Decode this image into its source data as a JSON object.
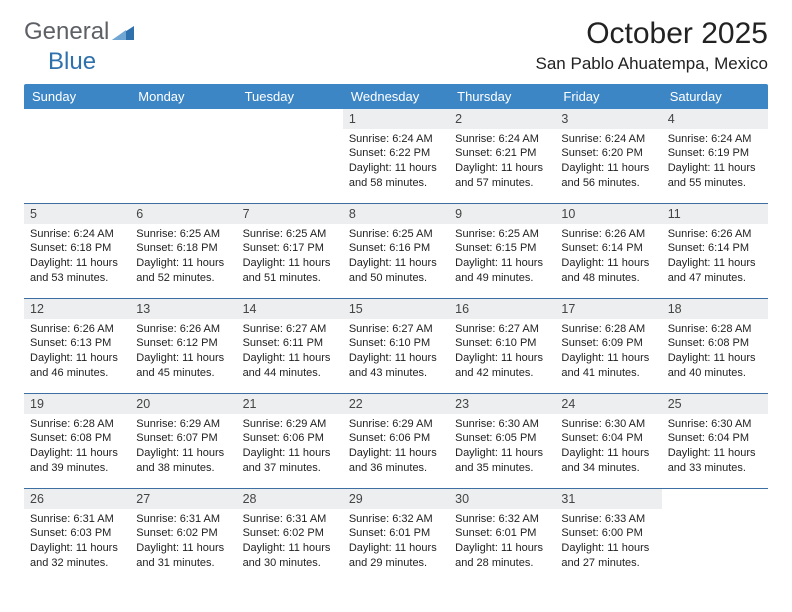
{
  "brand": {
    "part1": "General",
    "part2": "Blue"
  },
  "title": "October 2025",
  "location": "San Pablo Ahuatempa, Mexico",
  "colors": {
    "header_bg": "#3d86c6",
    "header_fg": "#ffffff",
    "daynum_bg": "#eceeef",
    "row_border": "#3d6fa2",
    "brand_grey": "#5d6166",
    "brand_blue": "#2f71ad"
  },
  "weekdays": [
    "Sunday",
    "Monday",
    "Tuesday",
    "Wednesday",
    "Thursday",
    "Friday",
    "Saturday"
  ],
  "weeks": [
    [
      {
        "empty": true
      },
      {
        "empty": true
      },
      {
        "empty": true
      },
      {
        "day": "1",
        "sunrise": "Sunrise: 6:24 AM",
        "sunset": "Sunset: 6:22 PM",
        "daylight": "Daylight: 11 hours and 58 minutes."
      },
      {
        "day": "2",
        "sunrise": "Sunrise: 6:24 AM",
        "sunset": "Sunset: 6:21 PM",
        "daylight": "Daylight: 11 hours and 57 minutes."
      },
      {
        "day": "3",
        "sunrise": "Sunrise: 6:24 AM",
        "sunset": "Sunset: 6:20 PM",
        "daylight": "Daylight: 11 hours and 56 minutes."
      },
      {
        "day": "4",
        "sunrise": "Sunrise: 6:24 AM",
        "sunset": "Sunset: 6:19 PM",
        "daylight": "Daylight: 11 hours and 55 minutes."
      }
    ],
    [
      {
        "day": "5",
        "sunrise": "Sunrise: 6:24 AM",
        "sunset": "Sunset: 6:18 PM",
        "daylight": "Daylight: 11 hours and 53 minutes."
      },
      {
        "day": "6",
        "sunrise": "Sunrise: 6:25 AM",
        "sunset": "Sunset: 6:18 PM",
        "daylight": "Daylight: 11 hours and 52 minutes."
      },
      {
        "day": "7",
        "sunrise": "Sunrise: 6:25 AM",
        "sunset": "Sunset: 6:17 PM",
        "daylight": "Daylight: 11 hours and 51 minutes."
      },
      {
        "day": "8",
        "sunrise": "Sunrise: 6:25 AM",
        "sunset": "Sunset: 6:16 PM",
        "daylight": "Daylight: 11 hours and 50 minutes."
      },
      {
        "day": "9",
        "sunrise": "Sunrise: 6:25 AM",
        "sunset": "Sunset: 6:15 PM",
        "daylight": "Daylight: 11 hours and 49 minutes."
      },
      {
        "day": "10",
        "sunrise": "Sunrise: 6:26 AM",
        "sunset": "Sunset: 6:14 PM",
        "daylight": "Daylight: 11 hours and 48 minutes."
      },
      {
        "day": "11",
        "sunrise": "Sunrise: 6:26 AM",
        "sunset": "Sunset: 6:14 PM",
        "daylight": "Daylight: 11 hours and 47 minutes."
      }
    ],
    [
      {
        "day": "12",
        "sunrise": "Sunrise: 6:26 AM",
        "sunset": "Sunset: 6:13 PM",
        "daylight": "Daylight: 11 hours and 46 minutes."
      },
      {
        "day": "13",
        "sunrise": "Sunrise: 6:26 AM",
        "sunset": "Sunset: 6:12 PM",
        "daylight": "Daylight: 11 hours and 45 minutes."
      },
      {
        "day": "14",
        "sunrise": "Sunrise: 6:27 AM",
        "sunset": "Sunset: 6:11 PM",
        "daylight": "Daylight: 11 hours and 44 minutes."
      },
      {
        "day": "15",
        "sunrise": "Sunrise: 6:27 AM",
        "sunset": "Sunset: 6:10 PM",
        "daylight": "Daylight: 11 hours and 43 minutes."
      },
      {
        "day": "16",
        "sunrise": "Sunrise: 6:27 AM",
        "sunset": "Sunset: 6:10 PM",
        "daylight": "Daylight: 11 hours and 42 minutes."
      },
      {
        "day": "17",
        "sunrise": "Sunrise: 6:28 AM",
        "sunset": "Sunset: 6:09 PM",
        "daylight": "Daylight: 11 hours and 41 minutes."
      },
      {
        "day": "18",
        "sunrise": "Sunrise: 6:28 AM",
        "sunset": "Sunset: 6:08 PM",
        "daylight": "Daylight: 11 hours and 40 minutes."
      }
    ],
    [
      {
        "day": "19",
        "sunrise": "Sunrise: 6:28 AM",
        "sunset": "Sunset: 6:08 PM",
        "daylight": "Daylight: 11 hours and 39 minutes."
      },
      {
        "day": "20",
        "sunrise": "Sunrise: 6:29 AM",
        "sunset": "Sunset: 6:07 PM",
        "daylight": "Daylight: 11 hours and 38 minutes."
      },
      {
        "day": "21",
        "sunrise": "Sunrise: 6:29 AM",
        "sunset": "Sunset: 6:06 PM",
        "daylight": "Daylight: 11 hours and 37 minutes."
      },
      {
        "day": "22",
        "sunrise": "Sunrise: 6:29 AM",
        "sunset": "Sunset: 6:06 PM",
        "daylight": "Daylight: 11 hours and 36 minutes."
      },
      {
        "day": "23",
        "sunrise": "Sunrise: 6:30 AM",
        "sunset": "Sunset: 6:05 PM",
        "daylight": "Daylight: 11 hours and 35 minutes."
      },
      {
        "day": "24",
        "sunrise": "Sunrise: 6:30 AM",
        "sunset": "Sunset: 6:04 PM",
        "daylight": "Daylight: 11 hours and 34 minutes."
      },
      {
        "day": "25",
        "sunrise": "Sunrise: 6:30 AM",
        "sunset": "Sunset: 6:04 PM",
        "daylight": "Daylight: 11 hours and 33 minutes."
      }
    ],
    [
      {
        "day": "26",
        "sunrise": "Sunrise: 6:31 AM",
        "sunset": "Sunset: 6:03 PM",
        "daylight": "Daylight: 11 hours and 32 minutes."
      },
      {
        "day": "27",
        "sunrise": "Sunrise: 6:31 AM",
        "sunset": "Sunset: 6:02 PM",
        "daylight": "Daylight: 11 hours and 31 minutes."
      },
      {
        "day": "28",
        "sunrise": "Sunrise: 6:31 AM",
        "sunset": "Sunset: 6:02 PM",
        "daylight": "Daylight: 11 hours and 30 minutes."
      },
      {
        "day": "29",
        "sunrise": "Sunrise: 6:32 AM",
        "sunset": "Sunset: 6:01 PM",
        "daylight": "Daylight: 11 hours and 29 minutes."
      },
      {
        "day": "30",
        "sunrise": "Sunrise: 6:32 AM",
        "sunset": "Sunset: 6:01 PM",
        "daylight": "Daylight: 11 hours and 28 minutes."
      },
      {
        "day": "31",
        "sunrise": "Sunrise: 6:33 AM",
        "sunset": "Sunset: 6:00 PM",
        "daylight": "Daylight: 11 hours and 27 minutes."
      },
      {
        "empty": true
      }
    ]
  ]
}
